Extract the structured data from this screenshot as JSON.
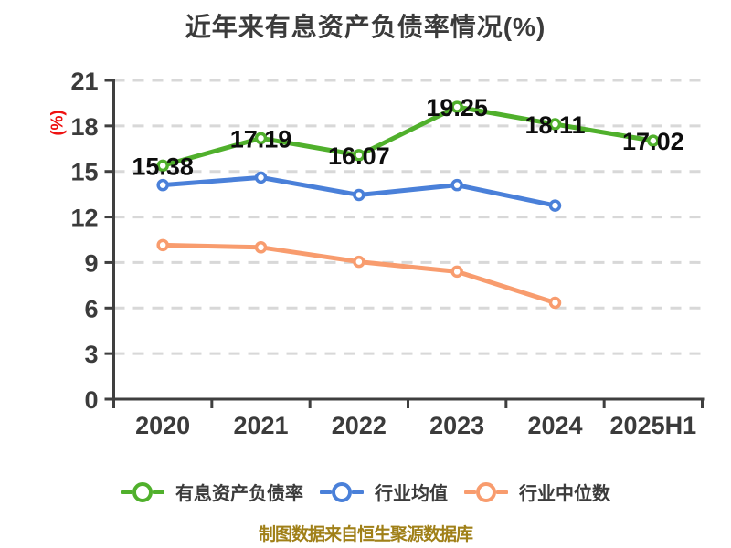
{
  "title": "近年来有息资产负债率情况(%)",
  "y_axis_label": "(%)",
  "footer": "制图数据来自恒生聚源数据库",
  "colors": {
    "background": "#ffffff",
    "text": "#3b3b3b",
    "axis": "#3f3f3f",
    "grid": "#d8d8d8",
    "data_label": "#0d0d0d",
    "unit_label": "#ee1111",
    "footer": "#a08018"
  },
  "chart_data": {
    "type": "line",
    "categories": [
      "2020",
      "2021",
      "2022",
      "2023",
      "2024",
      "2025H1"
    ],
    "series": [
      {
        "id": "main",
        "name": "有息资产负债率",
        "color": "#50b02c",
        "values": [
          15.38,
          17.19,
          16.07,
          19.25,
          18.11,
          17.02
        ],
        "show_labels": true
      },
      {
        "id": "industry-avg",
        "name": "行业均值",
        "color": "#4a80d9",
        "values": [
          14.1,
          14.6,
          13.45,
          14.1,
          12.75,
          null
        ],
        "show_labels": false
      },
      {
        "id": "industry-median",
        "name": "行业中位数",
        "color": "#f89c6e",
        "values": [
          10.15,
          10.0,
          9.05,
          8.4,
          6.35,
          null
        ],
        "show_labels": false
      }
    ],
    "ylim": [
      0,
      21
    ],
    "yticks": [
      0,
      3,
      6,
      9,
      12,
      15,
      18,
      21
    ],
    "grid": "horizontal-dashed",
    "legend_position": "bottom",
    "marker": "white-circle-colored-ring"
  }
}
